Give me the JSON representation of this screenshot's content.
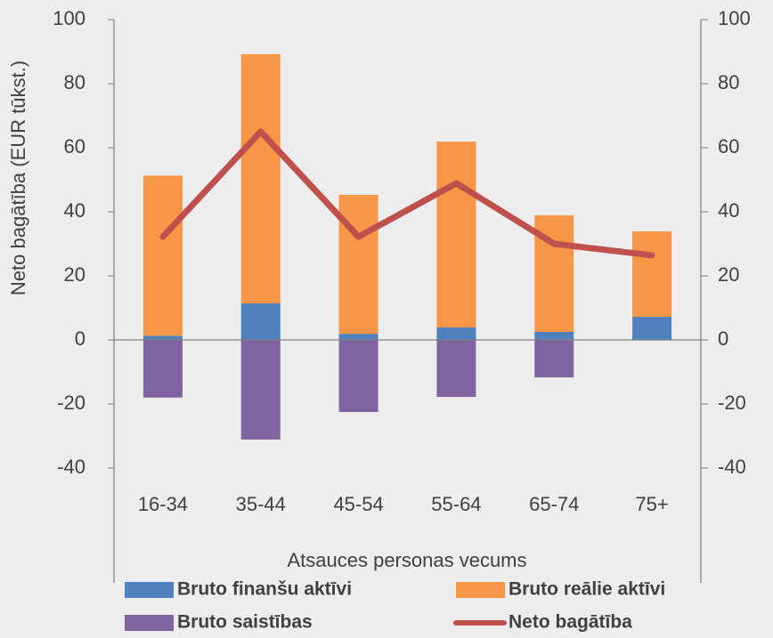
{
  "chart_data": {
    "type": "bar",
    "y_label": "Neto bagātība (EUR tūkst.)",
    "x_label": "Atsauces personas vecums",
    "categories": [
      "16-34",
      "35-44",
      "45-54",
      "55-64",
      "65-74",
      "75+"
    ],
    "series": [
      {
        "name": "Bruto finanšu aktīvi",
        "color": "#4e81bd",
        "type": "bar",
        "values": [
          1.3,
          11.4,
          1.9,
          3.9,
          2.5,
          7.2
        ]
      },
      {
        "name": "Bruto reālie aktīvi",
        "color": "#f79646",
        "type": "bar",
        "values": [
          50,
          77.8,
          43.4,
          58,
          36.4,
          26.7
        ]
      },
      {
        "name": "Bruto saistības",
        "color": "#8064a2",
        "type": "bar",
        "values": [
          -18,
          -31.1,
          -22.5,
          -17.8,
          -11.7,
          0
        ]
      },
      {
        "name": "Neto bagātība",
        "color": "#c0504d",
        "type": "line",
        "values": [
          32.2,
          65,
          32.2,
          48.9,
          30,
          26.4
        ]
      }
    ],
    "ylim": [
      -40,
      100
    ],
    "yticks": [
      -40,
      -20,
      0,
      20,
      40,
      60,
      80,
      100
    ],
    "y2lim": [
      -40,
      100
    ],
    "y2ticks": [
      -40,
      -20,
      0,
      20,
      40,
      60,
      80,
      100
    ],
    "stacked": true
  }
}
